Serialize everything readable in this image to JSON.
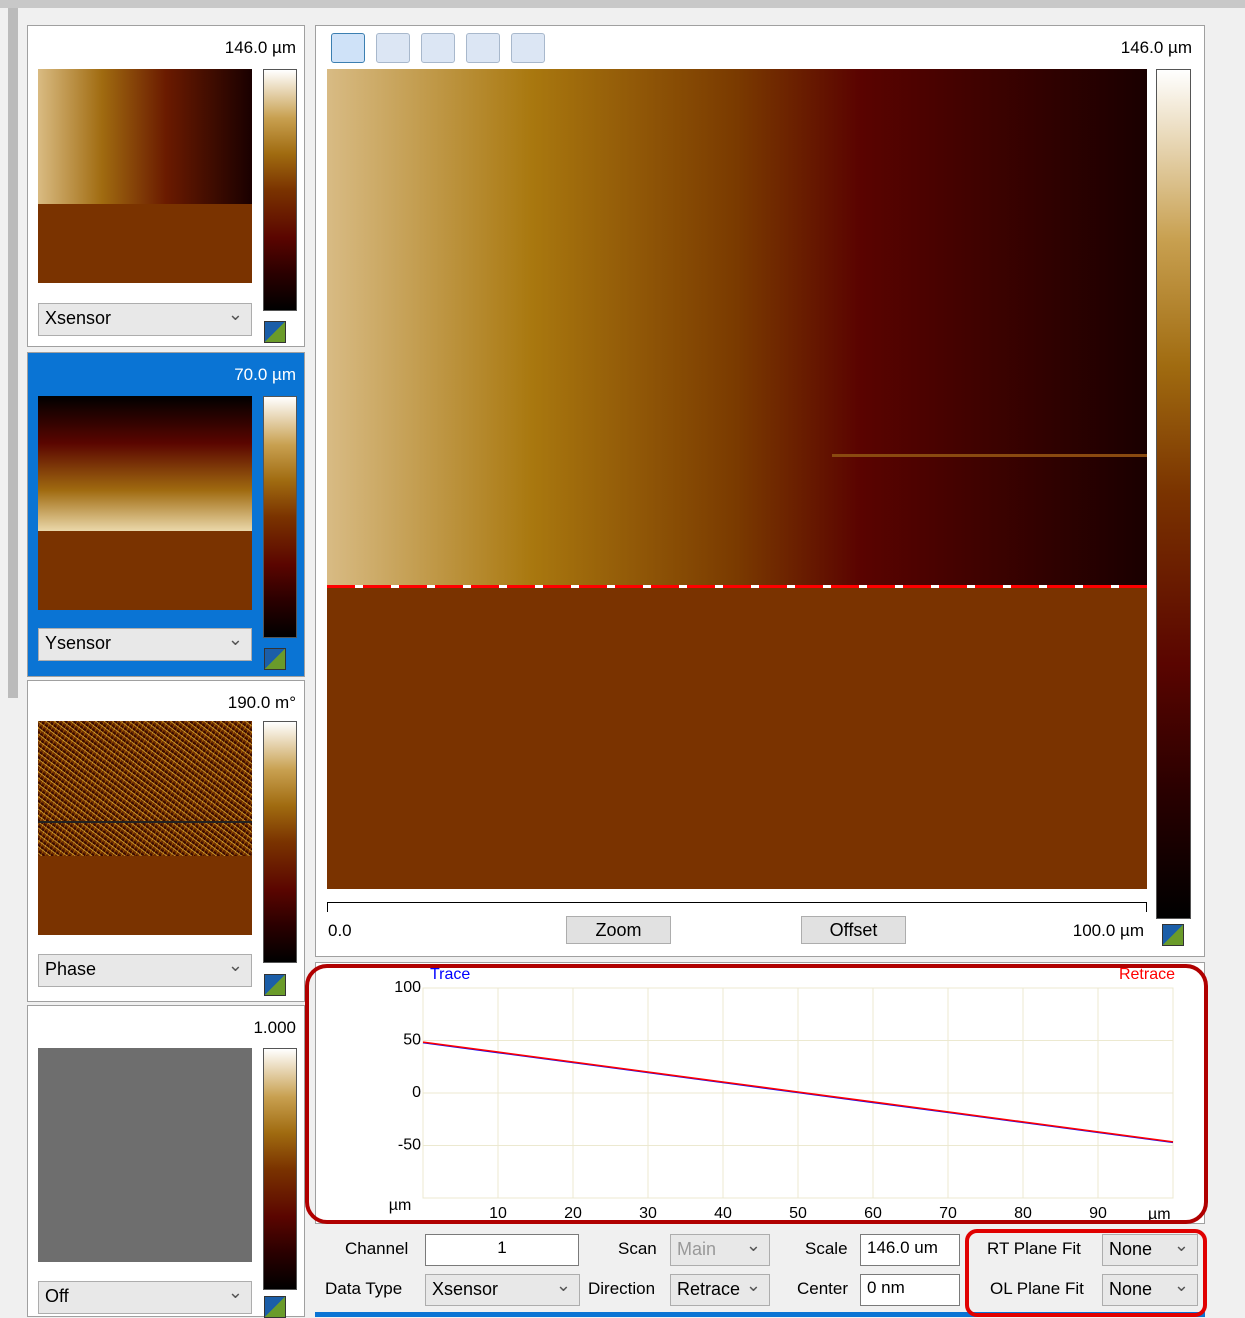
{
  "panels": [
    {
      "scale": "146.0 µm",
      "channel": "Xsensor"
    },
    {
      "scale": "70.0 µm",
      "channel": "Ysensor"
    },
    {
      "scale": "190.0 m°",
      "channel": "Phase"
    },
    {
      "scale": "1.000",
      "channel": "Off"
    }
  ],
  "main": {
    "scale": "146.0 µm",
    "ruler_start": "0.0",
    "ruler_end": "100.0 µm",
    "zoom_button": "Zoom",
    "offset_button": "Offset"
  },
  "chart_data": {
    "type": "line",
    "xlabel": "µm",
    "ylabel": "µm",
    "x": [
      0,
      10,
      20,
      30,
      40,
      50,
      60,
      70,
      80,
      90,
      100
    ],
    "series": [
      {
        "name": "Trace",
        "color": "#0000ff",
        "values": [
          48,
          38.5,
          29,
          19.5,
          10,
          0.5,
          -9,
          -18.5,
          -28,
          -37.5,
          -47
        ]
      },
      {
        "name": "Retrace",
        "color": "#ff0000",
        "values": [
          48.5,
          39,
          29.5,
          20,
          10.5,
          1,
          -8.5,
          -18,
          -27.5,
          -37,
          -46.5
        ]
      }
    ],
    "xlim": [
      0,
      100
    ],
    "xticks": [
      10,
      20,
      30,
      40,
      50,
      60,
      70,
      80,
      90
    ],
    "ylim": [
      -100,
      100
    ],
    "yticks": [
      100,
      50,
      0,
      -50
    ],
    "grid": true
  },
  "controls": {
    "channel_label": "Channel",
    "channel_value": "1",
    "scan_label": "Scan",
    "scan_value": "Main",
    "scale_label": "Scale",
    "scale_value": "146.0 um",
    "rt_label": "RT Plane Fit",
    "rt_value": "None",
    "datatype_label": "Data Type",
    "datatype_value": "Xsensor",
    "direction_label": "Direction",
    "direction_value": "Retrace",
    "center_label": "Center",
    "center_value": "0 nm",
    "ol_label": "OL Plane Fit",
    "ol_value": "None"
  }
}
